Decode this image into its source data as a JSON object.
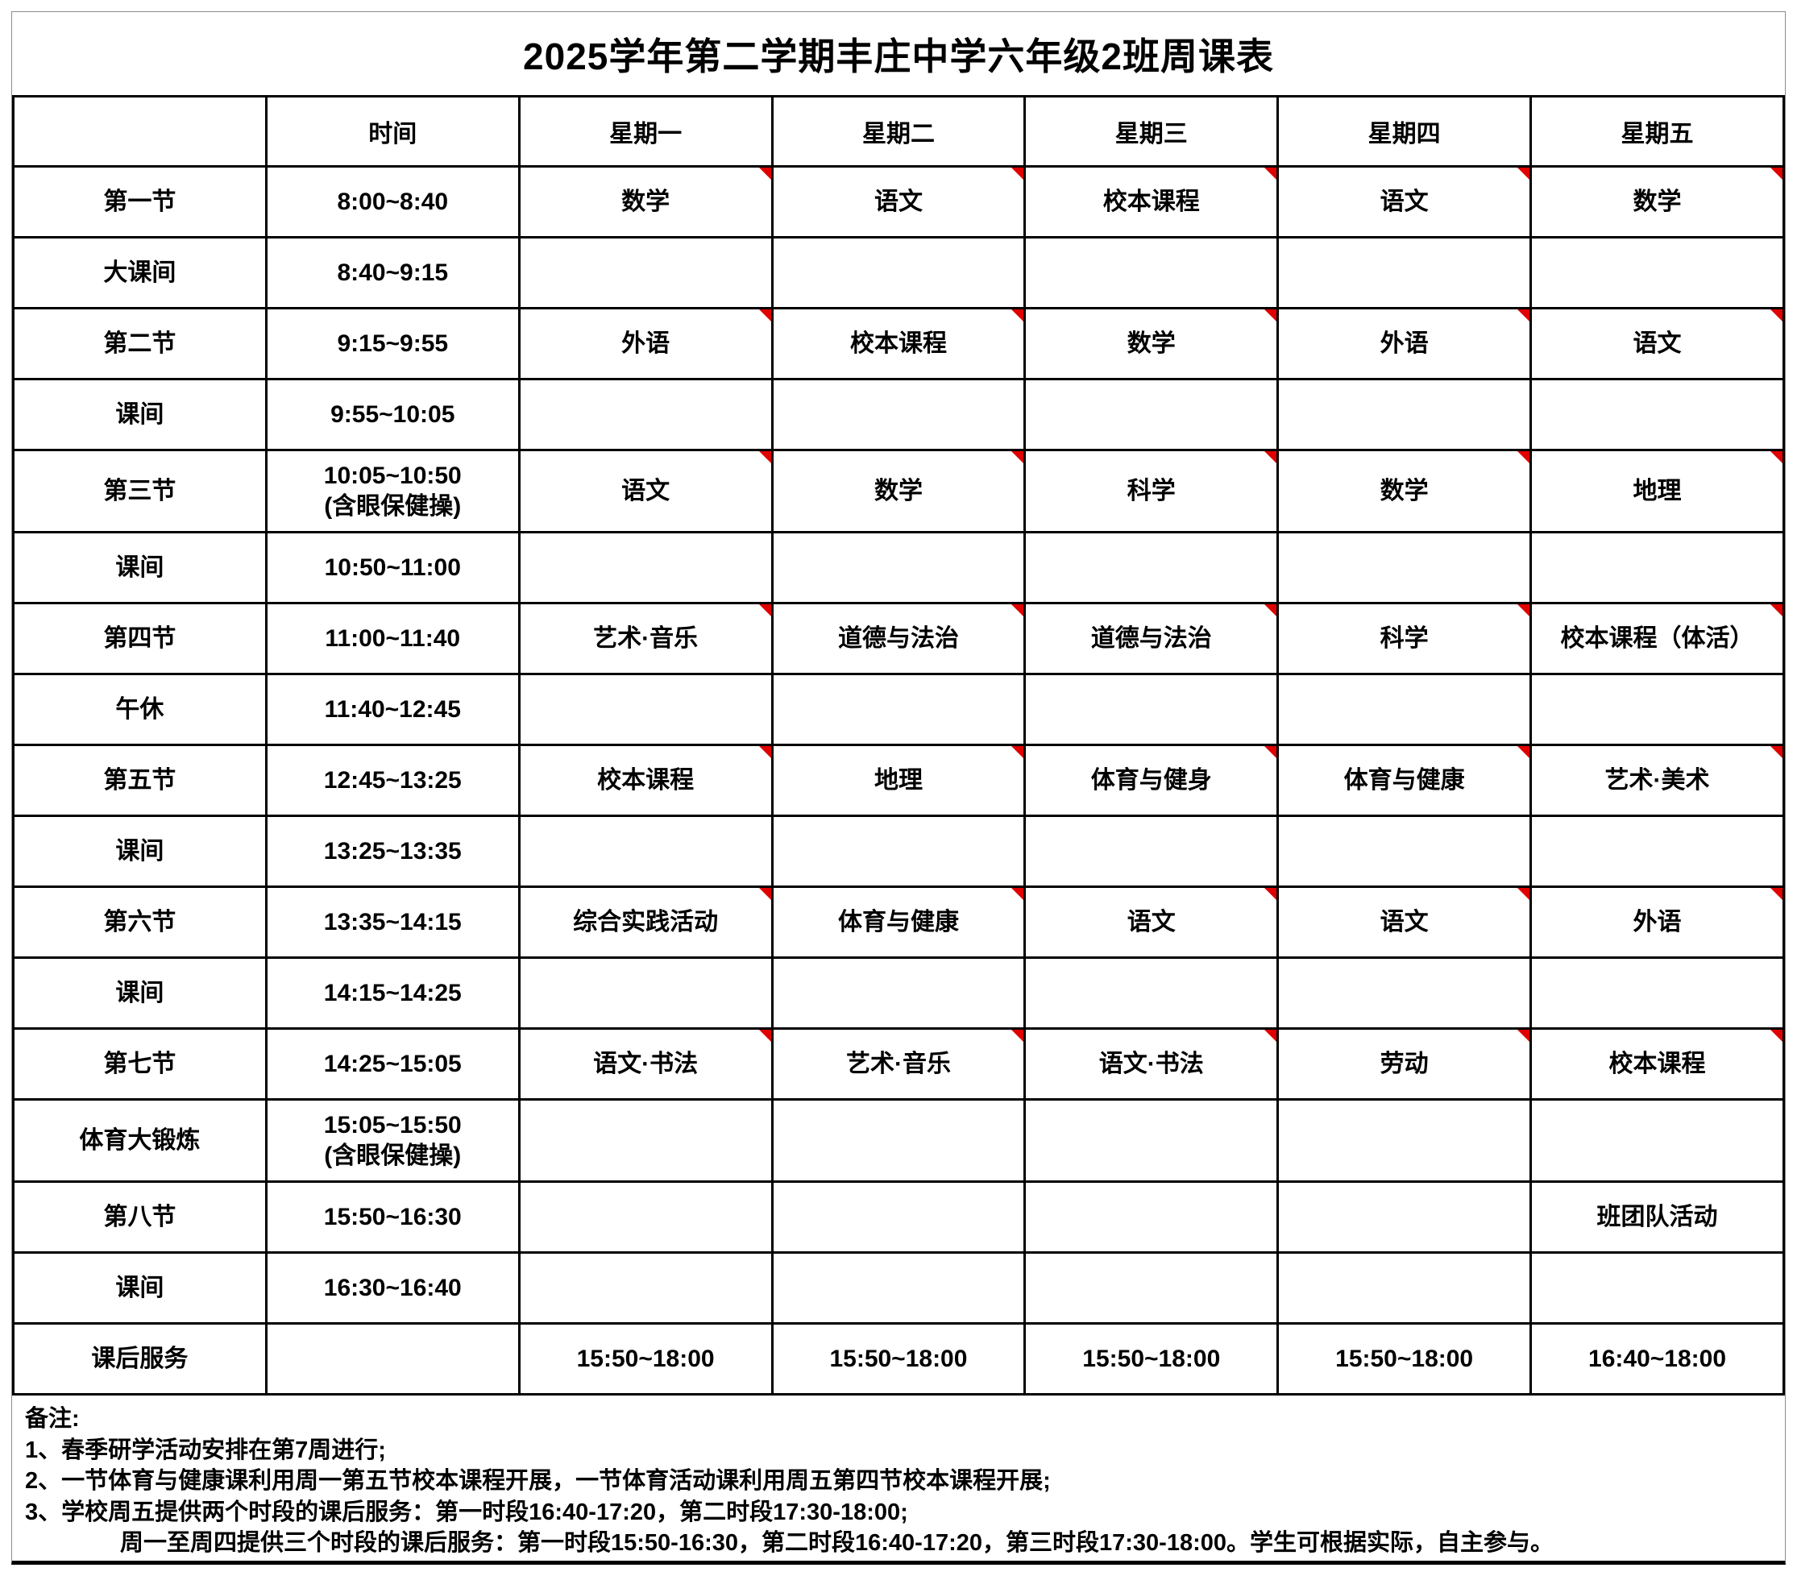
{
  "title": "2025学年第二学期丰庄中学六年级2班周课表",
  "colors": {
    "comment_marker": "#e00000",
    "grid": "#000000",
    "text": "#000000",
    "background": "#ffffff"
  },
  "table": {
    "headers": [
      "",
      "时间",
      "星期一",
      "星期二",
      "星期三",
      "星期四",
      "星期五"
    ],
    "rows": [
      {
        "label": "第一节",
        "time": "8:00~8:40",
        "cells": [
          "数学",
          "语文",
          "校本课程",
          "语文",
          "数学"
        ],
        "marked": [
          true,
          true,
          true,
          true,
          true
        ]
      },
      {
        "label": "大课间",
        "time": "8:40~9:15",
        "cells": [
          "",
          "",
          "",
          "",
          ""
        ],
        "marked": [
          false,
          false,
          false,
          false,
          false
        ]
      },
      {
        "label": "第二节",
        "time": "9:15~9:55",
        "cells": [
          "外语",
          "校本课程",
          "数学",
          "外语",
          "语文"
        ],
        "marked": [
          true,
          true,
          true,
          true,
          true
        ]
      },
      {
        "label": "课间",
        "time": "9:55~10:05",
        "cells": [
          "",
          "",
          "",
          "",
          ""
        ],
        "marked": [
          false,
          false,
          false,
          false,
          false
        ]
      },
      {
        "label": "第三节",
        "time": "10:05~10:50\n(含眼保健操)",
        "cells": [
          "语文",
          "数学",
          "科学",
          "数学",
          "地理"
        ],
        "marked": [
          true,
          true,
          true,
          true,
          true
        ]
      },
      {
        "label": "课间",
        "time": "10:50~11:00",
        "cells": [
          "",
          "",
          "",
          "",
          ""
        ],
        "marked": [
          false,
          false,
          false,
          false,
          false
        ]
      },
      {
        "label": "第四节",
        "time": "11:00~11:40",
        "cells": [
          "艺术·音乐",
          "道德与法治",
          "道德与法治",
          "科学",
          "校本课程（体活）"
        ],
        "marked": [
          true,
          true,
          true,
          true,
          true
        ]
      },
      {
        "label": "午休",
        "time": "11:40~12:45",
        "cells": [
          "",
          "",
          "",
          "",
          ""
        ],
        "marked": [
          false,
          false,
          false,
          false,
          false
        ]
      },
      {
        "label": "第五节",
        "time": "12:45~13:25",
        "cells": [
          "校本课程",
          "地理",
          "体育与健身",
          "体育与健康",
          "艺术·美术"
        ],
        "marked": [
          true,
          true,
          true,
          true,
          true
        ]
      },
      {
        "label": "课间",
        "time": "13:25~13:35",
        "cells": [
          "",
          "",
          "",
          "",
          ""
        ],
        "marked": [
          false,
          false,
          false,
          false,
          false
        ]
      },
      {
        "label": "第六节",
        "time": "13:35~14:15",
        "cells": [
          "综合实践活动",
          "体育与健康",
          "语文",
          "语文",
          "外语"
        ],
        "marked": [
          true,
          true,
          true,
          true,
          true
        ]
      },
      {
        "label": "课间",
        "time": "14:15~14:25",
        "cells": [
          "",
          "",
          "",
          "",
          ""
        ],
        "marked": [
          false,
          false,
          false,
          false,
          false
        ]
      },
      {
        "label": "第七节",
        "time": "14:25~15:05",
        "cells": [
          "语文·书法",
          "艺术·音乐",
          "语文·书法",
          "劳动",
          "校本课程"
        ],
        "marked": [
          true,
          true,
          true,
          true,
          true
        ]
      },
      {
        "label": "体育大锻炼",
        "time": "15:05~15:50\n(含眼保健操)",
        "cells": [
          "",
          "",
          "",
          "",
          ""
        ],
        "marked": [
          false,
          false,
          false,
          false,
          false
        ]
      },
      {
        "label": "第八节",
        "time": "15:50~16:30",
        "cells": [
          "",
          "",
          "",
          "",
          "班团队活动"
        ],
        "marked": [
          false,
          false,
          false,
          false,
          false
        ]
      },
      {
        "label": "课间",
        "time": "16:30~16:40",
        "cells": [
          "",
          "",
          "",
          "",
          ""
        ],
        "marked": [
          false,
          false,
          false,
          false,
          false
        ]
      },
      {
        "label": "课后服务",
        "time": "",
        "cells": [
          "15:50~18:00",
          "15:50~18:00",
          "15:50~18:00",
          "15:50~18:00",
          "16:40~18:00"
        ],
        "marked": [
          false,
          false,
          false,
          false,
          false
        ]
      }
    ]
  },
  "notes": {
    "heading": "备注:",
    "lines": [
      "1、春季研学活动安排在第7周进行;",
      "2、一节体育与健康课利用周一第五节校本课程开展，一节体育活动课利用周五第四节校本课程开展;",
      "3、学校周五提供两个时段的课后服务：第一时段16:40-17:20，第二时段17:30-18:00;",
      "周一至周四提供三个时段的课后服务：第一时段15:50-16:30，第二时段16:40-17:20，第三时段17:30-18:00。学生可根据实际，自主参与。"
    ]
  }
}
